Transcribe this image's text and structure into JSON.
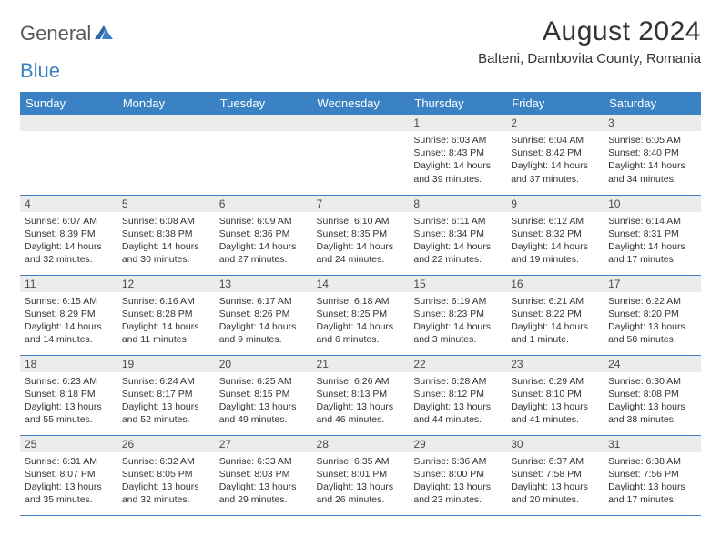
{
  "logo": {
    "text_general": "General",
    "text_blue": "Blue"
  },
  "title": "August 2024",
  "location": "Balteni, Dambovita County, Romania",
  "day_headers": [
    "Sunday",
    "Monday",
    "Tuesday",
    "Wednesday",
    "Thursday",
    "Friday",
    "Saturday"
  ],
  "colors": {
    "header_bg": "#3b82c4",
    "header_fg": "#ffffff",
    "daynum_bg": "#ececec",
    "border": "#3b82c4",
    "text": "#333333",
    "logo_gray": "#5a5a5a",
    "logo_blue": "#3b82c4"
  },
  "weeks": [
    [
      null,
      null,
      null,
      null,
      {
        "n": "1",
        "sunrise": "6:03 AM",
        "sunset": "8:43 PM",
        "daylight": "14 hours and 39 minutes."
      },
      {
        "n": "2",
        "sunrise": "6:04 AM",
        "sunset": "8:42 PM",
        "daylight": "14 hours and 37 minutes."
      },
      {
        "n": "3",
        "sunrise": "6:05 AM",
        "sunset": "8:40 PM",
        "daylight": "14 hours and 34 minutes."
      }
    ],
    [
      {
        "n": "4",
        "sunrise": "6:07 AM",
        "sunset": "8:39 PM",
        "daylight": "14 hours and 32 minutes."
      },
      {
        "n": "5",
        "sunrise": "6:08 AM",
        "sunset": "8:38 PM",
        "daylight": "14 hours and 30 minutes."
      },
      {
        "n": "6",
        "sunrise": "6:09 AM",
        "sunset": "8:36 PM",
        "daylight": "14 hours and 27 minutes."
      },
      {
        "n": "7",
        "sunrise": "6:10 AM",
        "sunset": "8:35 PM",
        "daylight": "14 hours and 24 minutes."
      },
      {
        "n": "8",
        "sunrise": "6:11 AM",
        "sunset": "8:34 PM",
        "daylight": "14 hours and 22 minutes."
      },
      {
        "n": "9",
        "sunrise": "6:12 AM",
        "sunset": "8:32 PM",
        "daylight": "14 hours and 19 minutes."
      },
      {
        "n": "10",
        "sunrise": "6:14 AM",
        "sunset": "8:31 PM",
        "daylight": "14 hours and 17 minutes."
      }
    ],
    [
      {
        "n": "11",
        "sunrise": "6:15 AM",
        "sunset": "8:29 PM",
        "daylight": "14 hours and 14 minutes."
      },
      {
        "n": "12",
        "sunrise": "6:16 AM",
        "sunset": "8:28 PM",
        "daylight": "14 hours and 11 minutes."
      },
      {
        "n": "13",
        "sunrise": "6:17 AM",
        "sunset": "8:26 PM",
        "daylight": "14 hours and 9 minutes."
      },
      {
        "n": "14",
        "sunrise": "6:18 AM",
        "sunset": "8:25 PM",
        "daylight": "14 hours and 6 minutes."
      },
      {
        "n": "15",
        "sunrise": "6:19 AM",
        "sunset": "8:23 PM",
        "daylight": "14 hours and 3 minutes."
      },
      {
        "n": "16",
        "sunrise": "6:21 AM",
        "sunset": "8:22 PM",
        "daylight": "14 hours and 1 minute."
      },
      {
        "n": "17",
        "sunrise": "6:22 AM",
        "sunset": "8:20 PM",
        "daylight": "13 hours and 58 minutes."
      }
    ],
    [
      {
        "n": "18",
        "sunrise": "6:23 AM",
        "sunset": "8:18 PM",
        "daylight": "13 hours and 55 minutes."
      },
      {
        "n": "19",
        "sunrise": "6:24 AM",
        "sunset": "8:17 PM",
        "daylight": "13 hours and 52 minutes."
      },
      {
        "n": "20",
        "sunrise": "6:25 AM",
        "sunset": "8:15 PM",
        "daylight": "13 hours and 49 minutes."
      },
      {
        "n": "21",
        "sunrise": "6:26 AM",
        "sunset": "8:13 PM",
        "daylight": "13 hours and 46 minutes."
      },
      {
        "n": "22",
        "sunrise": "6:28 AM",
        "sunset": "8:12 PM",
        "daylight": "13 hours and 44 minutes."
      },
      {
        "n": "23",
        "sunrise": "6:29 AM",
        "sunset": "8:10 PM",
        "daylight": "13 hours and 41 minutes."
      },
      {
        "n": "24",
        "sunrise": "6:30 AM",
        "sunset": "8:08 PM",
        "daylight": "13 hours and 38 minutes."
      }
    ],
    [
      {
        "n": "25",
        "sunrise": "6:31 AM",
        "sunset": "8:07 PM",
        "daylight": "13 hours and 35 minutes."
      },
      {
        "n": "26",
        "sunrise": "6:32 AM",
        "sunset": "8:05 PM",
        "daylight": "13 hours and 32 minutes."
      },
      {
        "n": "27",
        "sunrise": "6:33 AM",
        "sunset": "8:03 PM",
        "daylight": "13 hours and 29 minutes."
      },
      {
        "n": "28",
        "sunrise": "6:35 AM",
        "sunset": "8:01 PM",
        "daylight": "13 hours and 26 minutes."
      },
      {
        "n": "29",
        "sunrise": "6:36 AM",
        "sunset": "8:00 PM",
        "daylight": "13 hours and 23 minutes."
      },
      {
        "n": "30",
        "sunrise": "6:37 AM",
        "sunset": "7:58 PM",
        "daylight": "13 hours and 20 minutes."
      },
      {
        "n": "31",
        "sunrise": "6:38 AM",
        "sunset": "7:56 PM",
        "daylight": "13 hours and 17 minutes."
      }
    ]
  ]
}
